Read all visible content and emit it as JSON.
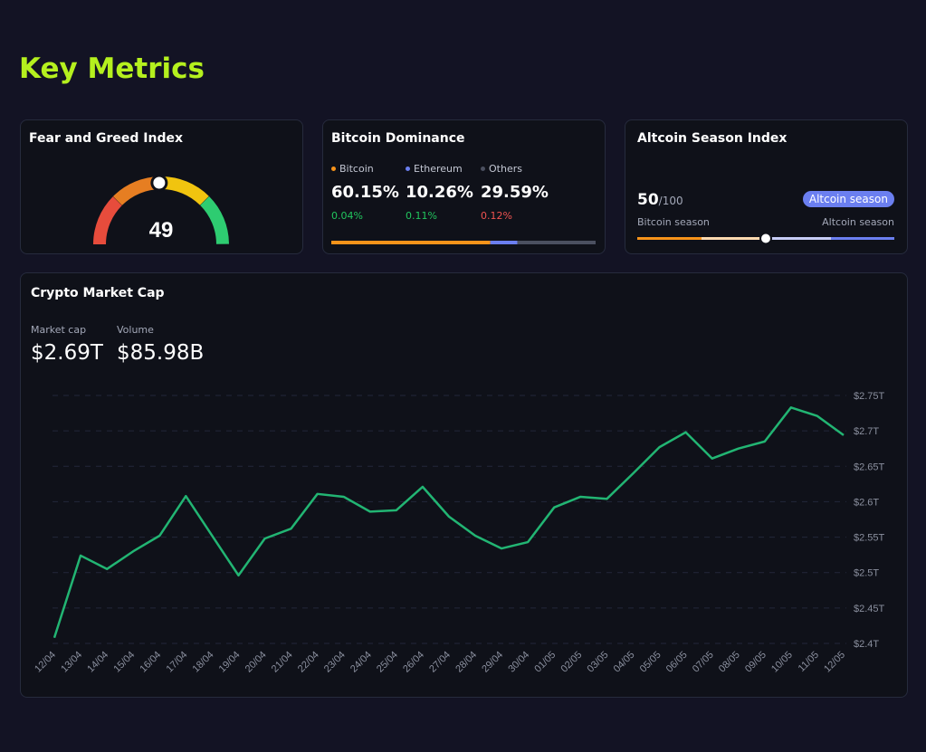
{
  "header": {
    "title": "Key Metrics"
  },
  "fear_greed": {
    "title": "Fear and Greed Index",
    "value": 49,
    "range": [
      0,
      100
    ]
  },
  "dominance": {
    "title": "Bitcoin Dominance",
    "items": [
      {
        "name": "Bitcoin",
        "color": "#f7931a",
        "value": 60.15,
        "label": "60.15%",
        "change": "0.04%",
        "change_color": "#22c55e"
      },
      {
        "name": "Ethereum",
        "color": "#6b7ff0",
        "value": 10.26,
        "label": "10.26%",
        "change": "0.11%",
        "change_color": "#22c55e"
      },
      {
        "name": "Others",
        "color": "#4b5060",
        "value": 29.59,
        "label": "29.59%",
        "change": "0.12%",
        "change_color": "#ef5350"
      }
    ]
  },
  "altcoin": {
    "title": "Altcoin Season Index",
    "value": 50,
    "max": {
      "value": 100,
      "label": "/100"
    },
    "badge": "Altcoin season",
    "left_label": "Bitcoin season",
    "right_label": "Altcoin season"
  },
  "market_stats": [
    {
      "label": "Market cap",
      "value": "$2.69T"
    },
    {
      "label": "Volume",
      "value": "$85.98B"
    }
  ],
  "chart_data": {
    "type": "line",
    "title": "Crypto Market Cap",
    "color": "#22b573",
    "categories": [
      "12/04",
      "13/04",
      "14/04",
      "15/04",
      "16/04",
      "17/04",
      "18/04",
      "19/04",
      "20/04",
      "21/04",
      "22/04",
      "23/04",
      "24/04",
      "25/04",
      "26/04",
      "27/04",
      "28/04",
      "29/04",
      "30/04",
      "01/05",
      "02/05",
      "03/05",
      "04/05",
      "05/05",
      "06/05",
      "07/05",
      "08/05",
      "09/05",
      "10/05",
      "11/05",
      "12/05"
    ],
    "values": [
      2.408,
      2.524,
      2.505,
      2.53,
      2.552,
      2.608,
      2.552,
      2.496,
      2.548,
      2.562,
      2.611,
      2.607,
      2.586,
      2.588,
      2.621,
      2.579,
      2.552,
      2.534,
      2.543,
      2.592,
      2.607,
      2.604,
      2.64,
      2.677,
      2.698,
      2.661,
      2.675,
      2.685,
      2.733,
      2.721,
      2.694
    ],
    "ylim": [
      2.4,
      2.75
    ],
    "yticks": [
      {
        "value": 2.4,
        "label": "$2.4T"
      },
      {
        "value": 2.45,
        "label": "$2.45T"
      },
      {
        "value": 2.5,
        "label": "$2.5T"
      },
      {
        "value": 2.55,
        "label": "$2.55T"
      },
      {
        "value": 2.6,
        "label": "$2.6T"
      },
      {
        "value": 2.65,
        "label": "$2.65T"
      },
      {
        "value": 2.7,
        "label": "$2.7T"
      },
      {
        "value": 2.75,
        "label": "$2.75T"
      }
    ],
    "grid": true
  }
}
